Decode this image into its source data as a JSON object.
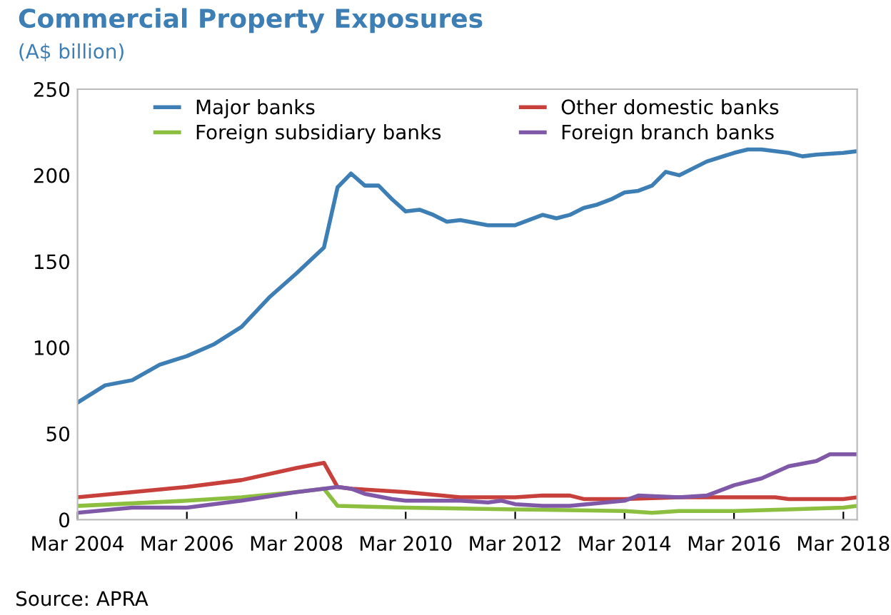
{
  "chart_data": {
    "type": "line",
    "title": "Commercial Property Exposures",
    "subtitle": "(A$ billion)",
    "annotations": [
      "Source: APRA"
    ],
    "xlim": [
      "2004-03",
      "2018-06"
    ],
    "ylim": [
      0,
      250
    ],
    "yticks": [
      0,
      50,
      100,
      150,
      200,
      250
    ],
    "xticks": [
      {
        "value": "2004-03",
        "label": "Mar 2004"
      },
      {
        "value": "2006-03",
        "label": "Mar 2006"
      },
      {
        "value": "2008-03",
        "label": "Mar 2008"
      },
      {
        "value": "2010-03",
        "label": "Mar 2010"
      },
      {
        "value": "2012-03",
        "label": "Mar 2012"
      },
      {
        "value": "2014-03",
        "label": "Mar 2014"
      },
      {
        "value": "2016-03",
        "label": "Mar 2016"
      },
      {
        "value": "2018-03",
        "label": "Mar 2018"
      }
    ],
    "grid": false,
    "legend": "top",
    "marker": "none",
    "line_style": "solid",
    "series": [
      {
        "name": "Major banks",
        "color": "#3d7fb5",
        "x": [
          "2004-03",
          "2004-09",
          "2005-03",
          "2005-09",
          "2006-03",
          "2006-09",
          "2007-03",
          "2007-09",
          "2008-03",
          "2008-09",
          "2008-12",
          "2009-03",
          "2009-06",
          "2009-09",
          "2009-12",
          "2010-03",
          "2010-06",
          "2010-09",
          "2010-12",
          "2011-03",
          "2011-09",
          "2012-03",
          "2012-06",
          "2012-09",
          "2012-12",
          "2013-03",
          "2013-06",
          "2013-09",
          "2013-12",
          "2014-03",
          "2014-06",
          "2014-09",
          "2014-12",
          "2015-03",
          "2015-09",
          "2016-03",
          "2016-06",
          "2016-09",
          "2017-03",
          "2017-06",
          "2017-09",
          "2018-03",
          "2018-06"
        ],
        "values": [
          68,
          78,
          81,
          90,
          95,
          102,
          112,
          129,
          143,
          158,
          193,
          201,
          194,
          194,
          186,
          179,
          180,
          177,
          173,
          174,
          171,
          171,
          174,
          177,
          175,
          177,
          181,
          183,
          186,
          190,
          191,
          194,
          202,
          200,
          208,
          213,
          215,
          215,
          213,
          211,
          212,
          213,
          214
        ]
      },
      {
        "name": "Other domestic banks",
        "color": "#c8403c",
        "x": [
          "2004-03",
          "2005-03",
          "2006-03",
          "2007-03",
          "2008-03",
          "2008-09",
          "2008-12",
          "2009-03",
          "2010-03",
          "2011-03",
          "2012-03",
          "2012-09",
          "2013-03",
          "2013-06",
          "2014-03",
          "2015-03",
          "2016-03",
          "2016-12",
          "2017-03",
          "2018-03",
          "2018-06"
        ],
        "values": [
          13,
          16,
          19,
          23,
          30,
          33,
          19,
          18,
          16,
          13,
          13,
          14,
          14,
          12,
          12,
          13,
          13,
          13,
          12,
          12,
          13
        ]
      },
      {
        "name": "Foreign subsidiary banks",
        "color": "#8cbf3f",
        "x": [
          "2004-03",
          "2006-03",
          "2007-03",
          "2008-03",
          "2008-09",
          "2008-12",
          "2010-03",
          "2012-03",
          "2014-03",
          "2014-09",
          "2015-03",
          "2016-03",
          "2017-03",
          "2018-03",
          "2018-06"
        ],
        "values": [
          8,
          11,
          13,
          16,
          18,
          8,
          7,
          6,
          5,
          4,
          5,
          5,
          6,
          7,
          8
        ]
      },
      {
        "name": "Foreign branch banks",
        "color": "#7f58a8",
        "x": [
          "2004-03",
          "2005-03",
          "2006-03",
          "2007-03",
          "2008-03",
          "2008-09",
          "2008-12",
          "2009-03",
          "2009-06",
          "2009-12",
          "2010-03",
          "2011-03",
          "2011-09",
          "2011-12",
          "2012-03",
          "2012-09",
          "2013-03",
          "2014-03",
          "2014-06",
          "2015-03",
          "2015-09",
          "2016-03",
          "2016-09",
          "2017-03",
          "2017-09",
          "2017-12",
          "2018-06"
        ],
        "values": [
          4,
          7,
          7,
          11,
          16,
          18,
          19,
          18,
          15,
          12,
          11,
          11,
          10,
          11,
          9,
          8,
          8,
          11,
          14,
          13,
          14,
          20,
          24,
          31,
          34,
          38,
          38
        ]
      }
    ]
  }
}
